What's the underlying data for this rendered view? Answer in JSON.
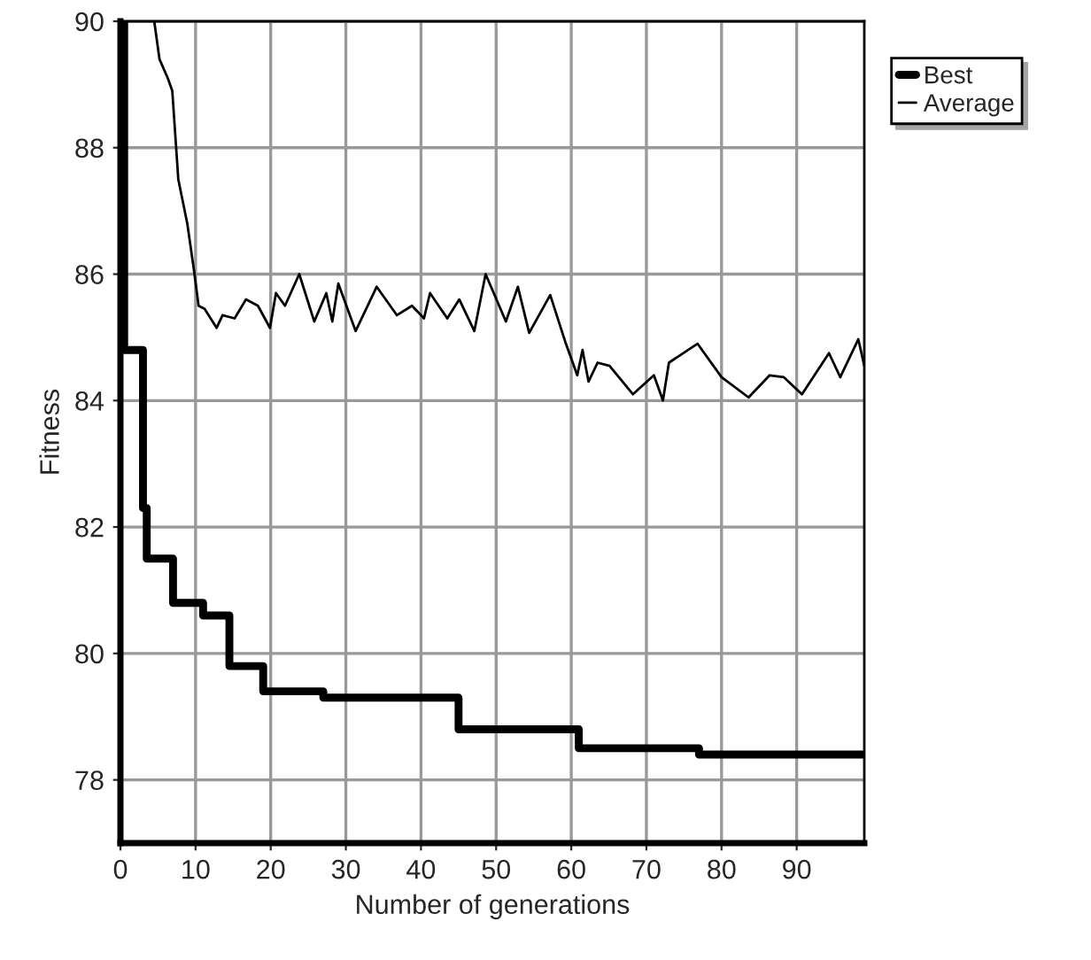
{
  "chart_data": {
    "type": "line",
    "xlabel": "Number of generations",
    "ylabel": "Fitness",
    "xlim": [
      0,
      99
    ],
    "ylim": [
      77,
      90
    ],
    "xticks": [
      0,
      10,
      20,
      30,
      40,
      50,
      60,
      70,
      80,
      90
    ],
    "yticks": [
      78,
      80,
      82,
      84,
      86,
      88,
      90
    ],
    "grid": true,
    "legend": "top right",
    "line_style": "solid",
    "marker": "none",
    "series": [
      {
        "name": "Best",
        "type": "step",
        "color": "#000000",
        "x": [
          0,
          0.5,
          3,
          3.5,
          7,
          11,
          14.5,
          19,
          27,
          45,
          61,
          77,
          99
        ],
        "values": [
          90,
          84.8,
          82.3,
          81.5,
          80.8,
          80.6,
          79.8,
          79.4,
          79.3,
          78.8,
          78.5,
          78.4,
          78.4
        ]
      },
      {
        "name": "Average",
        "color": "#000000",
        "x": [
          4.5,
          5.2,
          6.3,
          6.9,
          7.3,
          7.7,
          8.9,
          9.8,
          10.4,
          11.2,
          12.0,
          12.8,
          13.6,
          15.2,
          16.7,
          18.3,
          19.9,
          20.7,
          21.9,
          23.8,
          25.8,
          27.4,
          28.2,
          29,
          31.3,
          34.1,
          36.8,
          38.8,
          40.4,
          41.2,
          43.5,
          45.1,
          47.1,
          48.6,
          51.3,
          52.9,
          54.4,
          57.2,
          59.2,
          60.8,
          61.5,
          62.3,
          63.5,
          65.1,
          68.2,
          71,
          72.2,
          73,
          76.8,
          80,
          83.6,
          86.4,
          88.3,
          90.7,
          94.3,
          95.8,
          98.2,
          99
        ],
        "values": [
          90,
          89.4,
          89.1,
          88.9,
          88.2,
          87.5,
          86.8,
          86.05,
          85.5,
          85.45,
          85.3,
          85.15,
          85.35,
          85.3,
          85.6,
          85.5,
          85.15,
          85.7,
          85.5,
          86,
          85.25,
          85.7,
          85.25,
          85.85,
          85.1,
          85.8,
          85.35,
          85.5,
          85.3,
          85.7,
          85.3,
          85.6,
          85.1,
          86,
          85.25,
          85.8,
          85.07,
          85.67,
          84.93,
          84.4,
          84.8,
          84.3,
          84.6,
          84.55,
          84.1,
          84.4,
          84.0,
          84.6,
          84.9,
          84.37,
          84.05,
          84.4,
          84.37,
          84.1,
          84.75,
          84.37,
          84.97,
          84.55
        ]
      }
    ]
  }
}
